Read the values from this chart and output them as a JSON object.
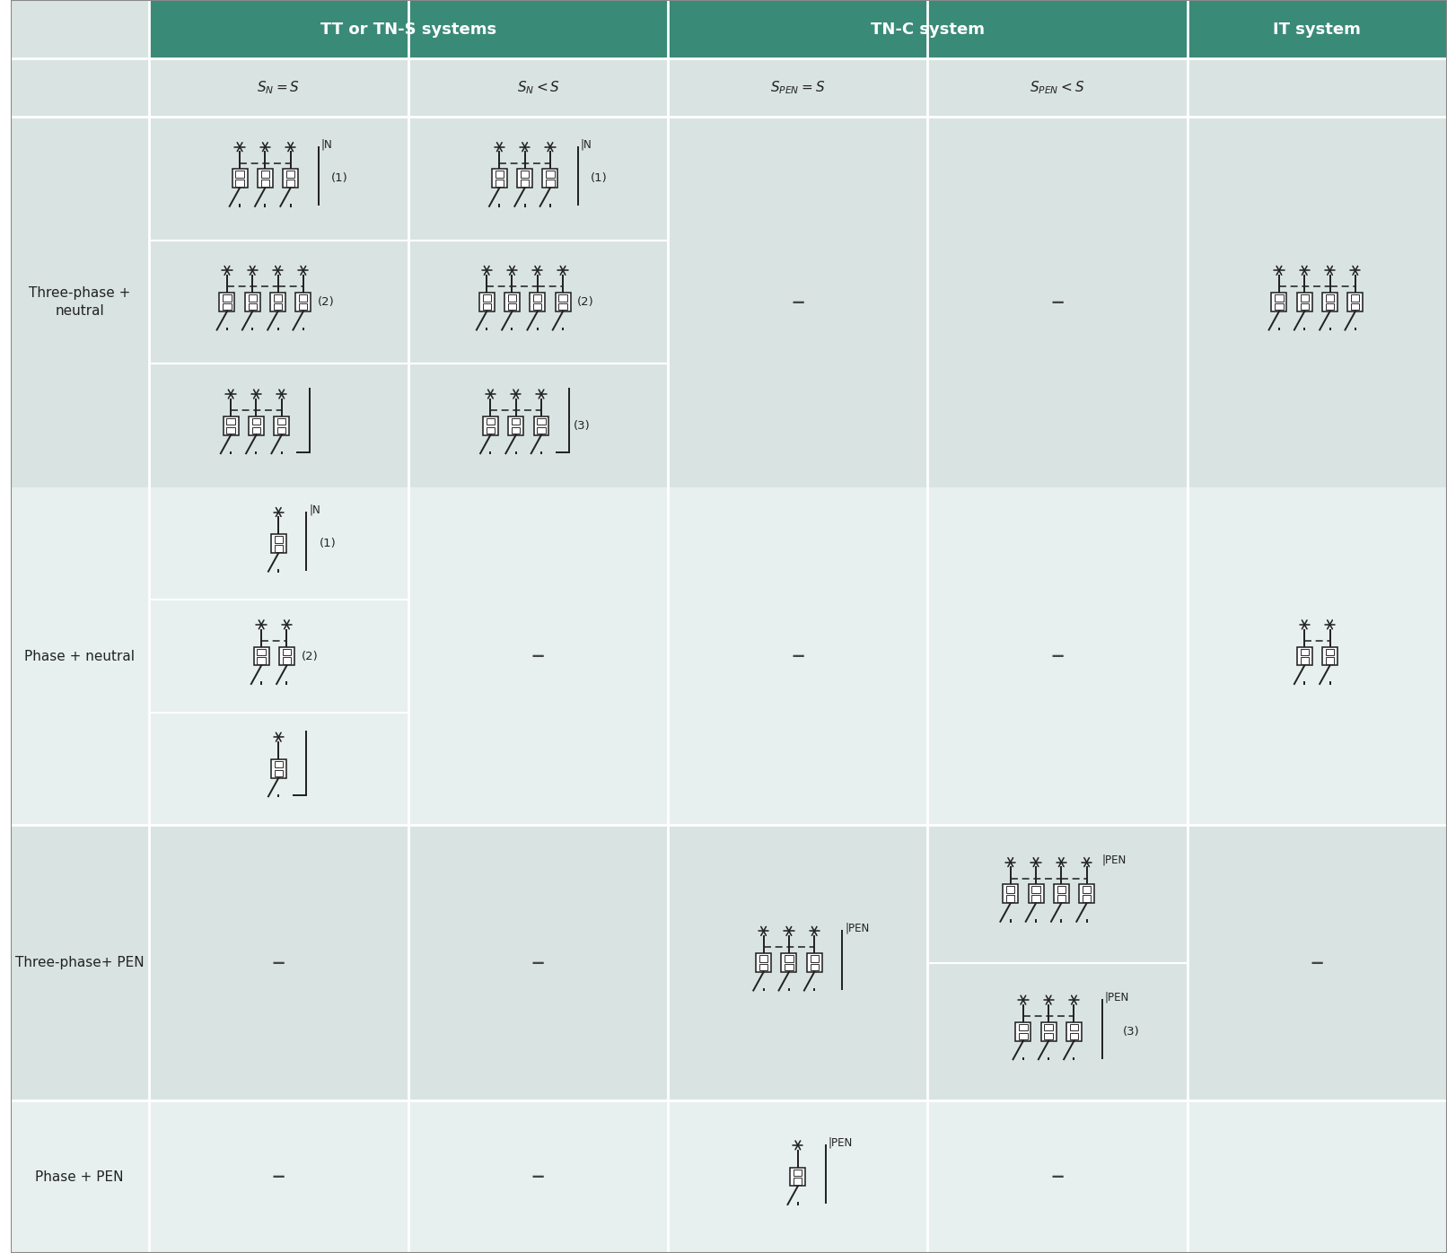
{
  "header_bg": "#3a8a78",
  "cell_bg_even": "#d9e4e2",
  "cell_bg_odd": "#e8f0ef",
  "border_color": "#ffffff",
  "text_color": "#222222",
  "dash_color": "#555555",
  "circuit_color": "#222222",
  "fig_width": 16.12,
  "fig_height": 13.96,
  "LCW": 155,
  "HH": 65,
  "SHH": 65,
  "RH": [
    390,
    355,
    290,
    160
  ],
  "n_data_cols": 5
}
